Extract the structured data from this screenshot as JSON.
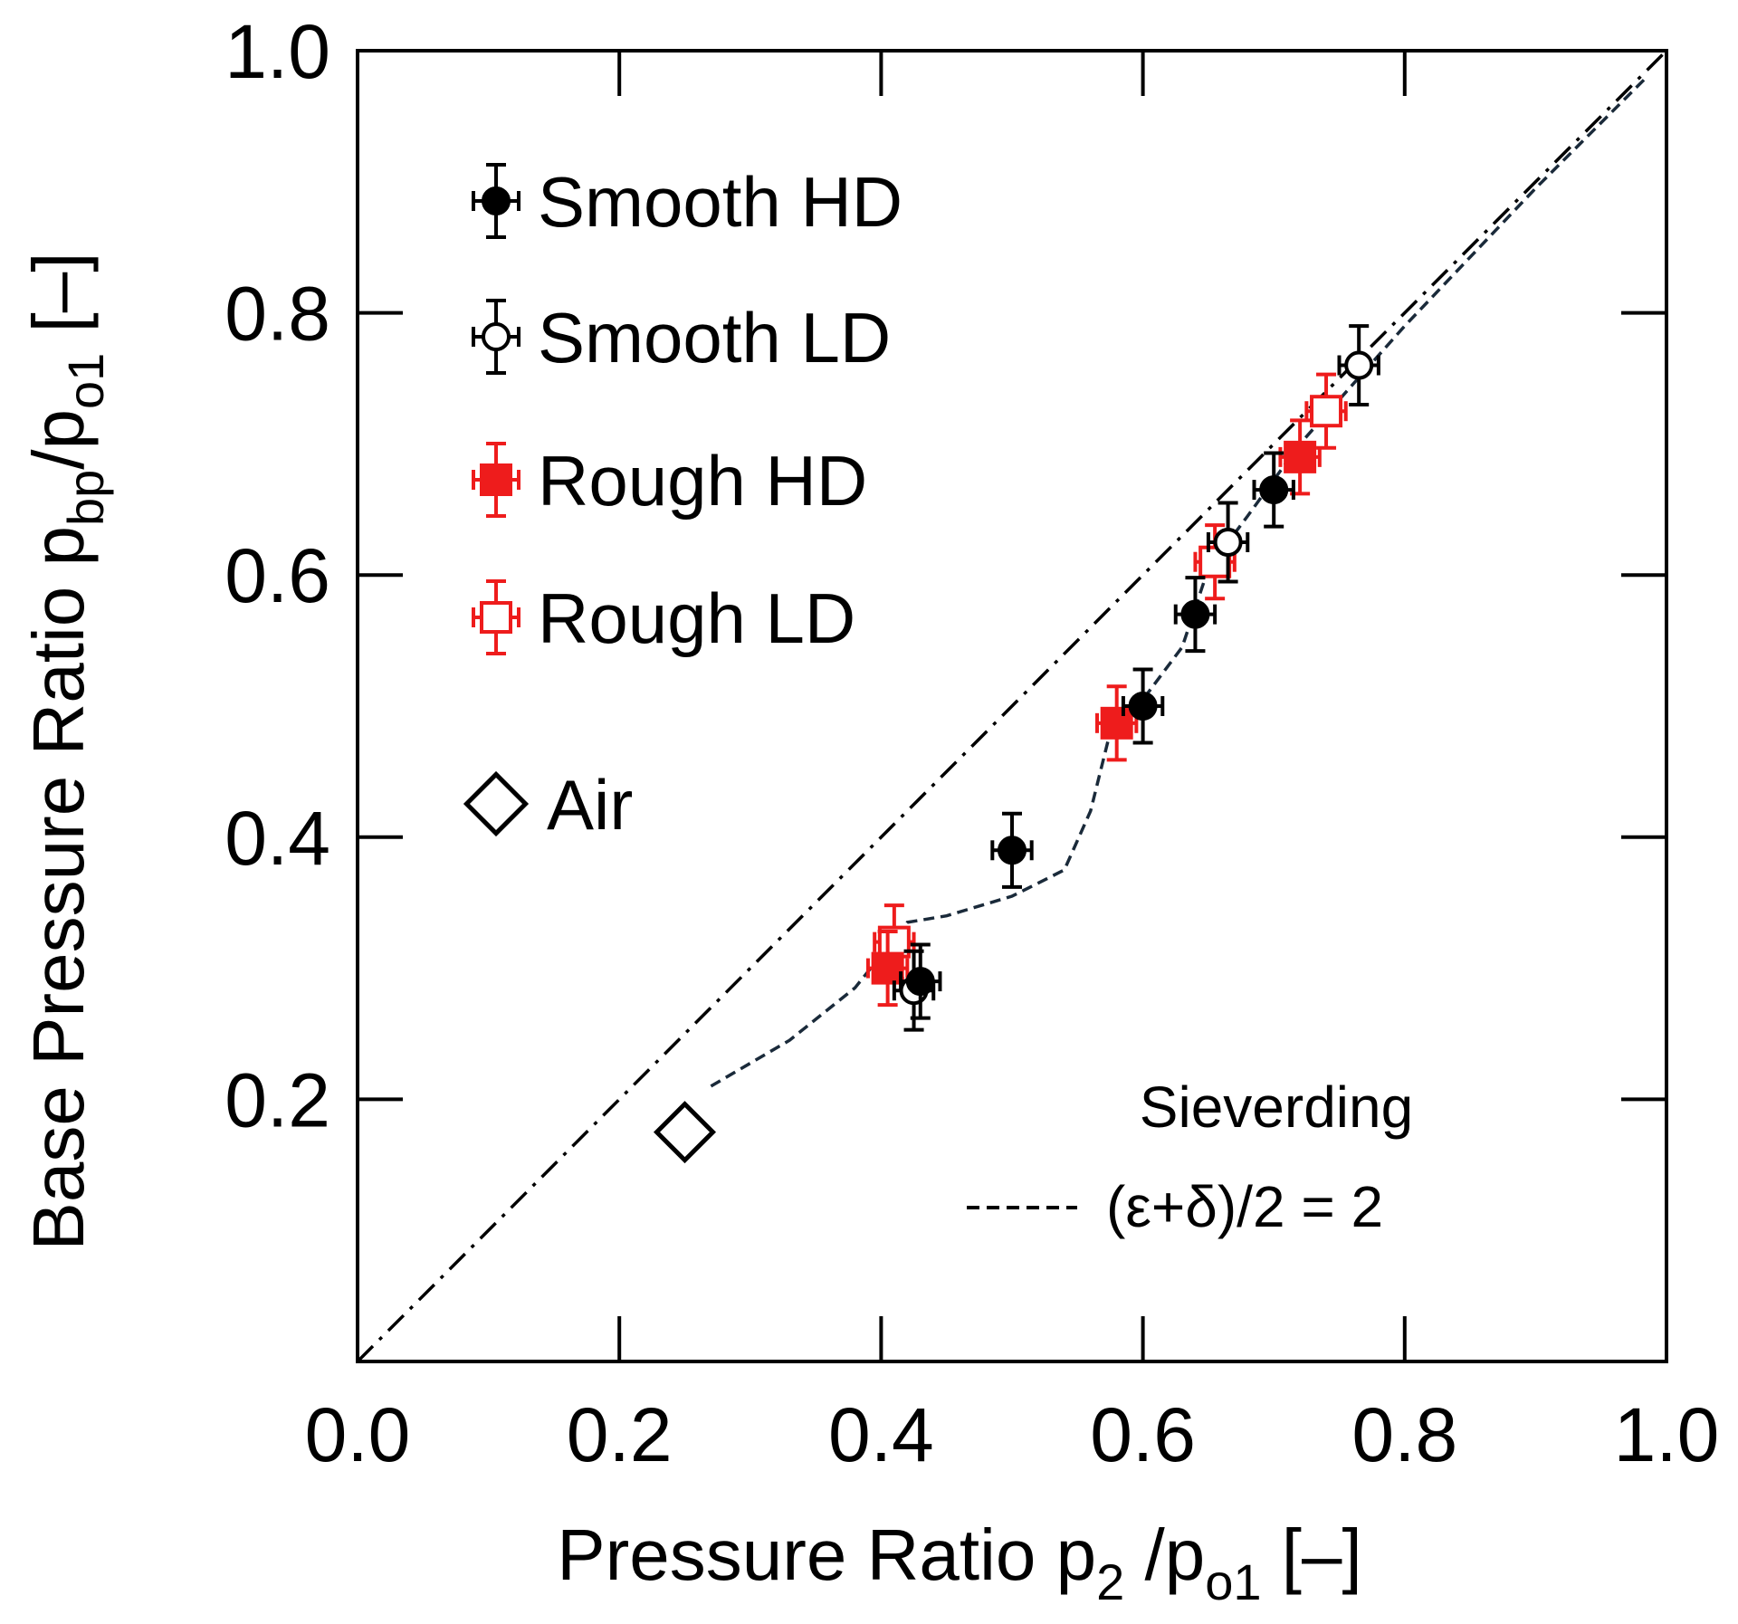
{
  "chart_data": {
    "type": "scatter",
    "xlabel": {
      "main": "Pressure Ratio p",
      "sub1": "2",
      "mid": " /p",
      "sub2": "o1",
      "tail": " [–]"
    },
    "ylabel": {
      "main": "Base Pressure Ratio  p",
      "sub1": "bp",
      "mid": "/p",
      "sub2": "o1",
      "tail": " [–]"
    },
    "xlim": [
      0.0,
      1.0
    ],
    "ylim": [
      0.0,
      1.0
    ],
    "x_ticks": [
      {
        "value": 0.0,
        "label": "0.0"
      },
      {
        "value": 0.2,
        "label": "0.2"
      },
      {
        "value": 0.4,
        "label": "0.4"
      },
      {
        "value": 0.6,
        "label": "0.6"
      },
      {
        "value": 0.8,
        "label": "0.8"
      },
      {
        "value": 1.0,
        "label": "1.0"
      }
    ],
    "y_ticks": [
      {
        "value": 0.2,
        "label": "0.2"
      },
      {
        "value": 0.4,
        "label": "0.4"
      },
      {
        "value": 0.6,
        "label": "0.6"
      },
      {
        "value": 0.8,
        "label": "0.8"
      },
      {
        "value": 1.0,
        "label": "1.0"
      }
    ],
    "series": [
      {
        "name": "Smooth HD",
        "marker": "circle",
        "fill": "filled",
        "color": "#000000",
        "x_err": 0.015,
        "y_err": 0.028,
        "points": [
          [
            0.43,
            0.29
          ],
          [
            0.5,
            0.39
          ],
          [
            0.6,
            0.5
          ],
          [
            0.64,
            0.57
          ],
          [
            0.7,
            0.665
          ]
        ]
      },
      {
        "name": "Smooth LD",
        "marker": "circle",
        "fill": "open",
        "color": "#000000",
        "x_err": 0.015,
        "y_err": 0.03,
        "points": [
          [
            0.425,
            0.283
          ],
          [
            0.665,
            0.625
          ],
          [
            0.765,
            0.76
          ]
        ]
      },
      {
        "name": "Rough HD",
        "marker": "square",
        "fill": "filled",
        "color": "#ee1c1c",
        "x_err": 0.015,
        "y_err": 0.028,
        "points": [
          [
            0.405,
            0.3
          ],
          [
            0.58,
            0.487
          ],
          [
            0.72,
            0.69
          ]
        ]
      },
      {
        "name": "Rough LD",
        "marker": "square",
        "fill": "open",
        "color": "#ee1c1c",
        "x_err": 0.015,
        "y_err": 0.028,
        "points": [
          [
            0.41,
            0.32
          ],
          [
            0.655,
            0.61
          ],
          [
            0.74,
            0.725
          ]
        ]
      },
      {
        "name": "Air",
        "marker": "diamond",
        "fill": "open",
        "color": "#000000",
        "points": [
          [
            0.25,
            0.175
          ]
        ]
      }
    ],
    "lines": [
      {
        "name": "identity",
        "style": "dash-dot",
        "color": "#000000",
        "points": [
          [
            0.0,
            0.0
          ],
          [
            1.0,
            1.0
          ]
        ]
      },
      {
        "name": "Sieverding (ε+δ)/2 = 2",
        "style": "dashed",
        "color": "#1a2a3a",
        "points": [
          [
            0.27,
            0.21
          ],
          [
            0.33,
            0.245
          ],
          [
            0.38,
            0.285
          ],
          [
            0.42,
            0.335
          ],
          [
            0.45,
            0.34
          ],
          [
            0.5,
            0.355
          ],
          [
            0.54,
            0.375
          ],
          [
            0.56,
            0.42
          ],
          [
            0.575,
            0.48
          ],
          [
            0.6,
            0.505
          ],
          [
            0.63,
            0.545
          ],
          [
            0.65,
            0.605
          ],
          [
            0.68,
            0.645
          ],
          [
            0.72,
            0.7
          ],
          [
            0.8,
            0.79
          ],
          [
            0.9,
            0.895
          ],
          [
            0.985,
            0.98
          ]
        ]
      }
    ],
    "annotation": {
      "line1": "Sieverding",
      "line2": "(ε+δ)/2 = 2"
    }
  }
}
